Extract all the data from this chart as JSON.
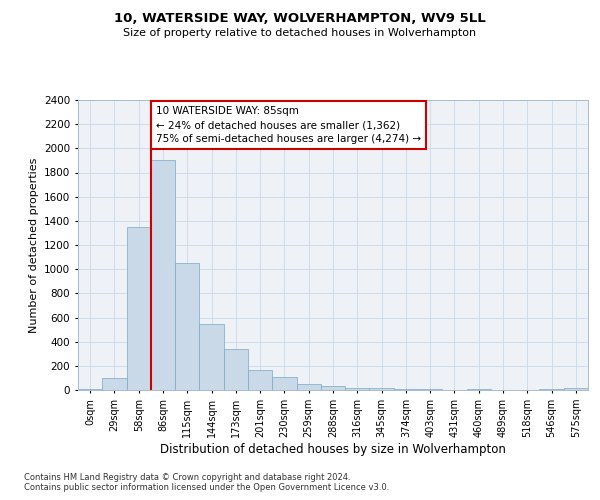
{
  "title1": "10, WATERSIDE WAY, WOLVERHAMPTON, WV9 5LL",
  "title2": "Size of property relative to detached houses in Wolverhampton",
  "xlabel": "Distribution of detached houses by size in Wolverhampton",
  "ylabel": "Number of detached properties",
  "categories": [
    "0sqm",
    "29sqm",
    "58sqm",
    "86sqm",
    "115sqm",
    "144sqm",
    "173sqm",
    "201sqm",
    "230sqm",
    "259sqm",
    "288sqm",
    "316sqm",
    "345sqm",
    "374sqm",
    "403sqm",
    "431sqm",
    "460sqm",
    "489sqm",
    "518sqm",
    "546sqm",
    "575sqm"
  ],
  "values": [
    10,
    100,
    1350,
    1900,
    1050,
    550,
    340,
    165,
    105,
    50,
    30,
    20,
    20,
    10,
    5,
    0,
    5,
    0,
    0,
    5,
    20
  ],
  "bar_color": "#c9d9e8",
  "bar_edge_color": "#7aa8c8",
  "ylim": [
    0,
    2400
  ],
  "yticks": [
    0,
    200,
    400,
    600,
    800,
    1000,
    1200,
    1400,
    1600,
    1800,
    2000,
    2200,
    2400
  ],
  "annotation_line1": "10 WATERSIDE WAY: 85sqm",
  "annotation_line2": "← 24% of detached houses are smaller (1,362)",
  "annotation_line3": "75% of semi-detached houses are larger (4,274) →",
  "red_line_color": "#cc0000",
  "footnote1": "Contains HM Land Registry data © Crown copyright and database right 2024.",
  "footnote2": "Contains public sector information licensed under the Open Government Licence v3.0."
}
